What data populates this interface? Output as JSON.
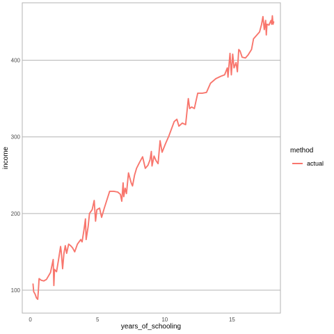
{
  "chart_data": {
    "type": "line",
    "xlabel": "years_of_schooling",
    "ylabel": "income",
    "xlim": [
      -0.6,
      18.6
    ],
    "ylim": [
      70,
      475
    ],
    "x_ticks": [
      0,
      5,
      10,
      15
    ],
    "x_tick_labels": [
      "0",
      "5",
      "10",
      "15"
    ],
    "y_ticks": [
      100,
      200,
      300,
      400
    ],
    "y_tick_labels": [
      "100",
      "200",
      "300",
      "400"
    ],
    "grid": true,
    "legend": {
      "title": "method",
      "placement": "right"
    },
    "series": [
      {
        "name": "actual",
        "color": "#f8766d",
        "points": [
          [
            0.2,
            108
          ],
          [
            0.25,
            98
          ],
          [
            0.35,
            95
          ],
          [
            0.45,
            90
          ],
          [
            0.55,
            88
          ],
          [
            0.6,
            100
          ],
          [
            0.65,
            115
          ],
          [
            0.8,
            113
          ],
          [
            1.0,
            112
          ],
          [
            1.2,
            114
          ],
          [
            1.5,
            123
          ],
          [
            1.7,
            140
          ],
          [
            1.75,
            106
          ],
          [
            1.8,
            127
          ],
          [
            1.95,
            124
          ],
          [
            2.1,
            140
          ],
          [
            2.25,
            157
          ],
          [
            2.3,
            150
          ],
          [
            2.4,
            128
          ],
          [
            2.5,
            148
          ],
          [
            2.6,
            158
          ],
          [
            2.7,
            148
          ],
          [
            2.85,
            160
          ],
          [
            3.0,
            158
          ],
          [
            3.15,
            155
          ],
          [
            3.3,
            150
          ],
          [
            3.5,
            160
          ],
          [
            3.75,
            166
          ],
          [
            3.85,
            163
          ],
          [
            4.0,
            180
          ],
          [
            4.1,
            193
          ],
          [
            4.15,
            166
          ],
          [
            4.3,
            183
          ],
          [
            4.4,
            200
          ],
          [
            4.6,
            205
          ],
          [
            4.75,
            217
          ],
          [
            4.85,
            190
          ],
          [
            4.95,
            205
          ],
          [
            5.15,
            207
          ],
          [
            5.3,
            195
          ],
          [
            5.5,
            207
          ],
          [
            5.7,
            218
          ],
          [
            5.9,
            229
          ],
          [
            6.2,
            229
          ],
          [
            6.5,
            228
          ],
          [
            6.7,
            225
          ],
          [
            6.8,
            216
          ],
          [
            6.9,
            240
          ],
          [
            6.95,
            222
          ],
          [
            7.05,
            233
          ],
          [
            7.15,
            226
          ],
          [
            7.3,
            253
          ],
          [
            7.5,
            240
          ],
          [
            7.6,
            236
          ],
          [
            7.75,
            250
          ],
          [
            7.9,
            259
          ],
          [
            8.1,
            266
          ],
          [
            8.35,
            274
          ],
          [
            8.55,
            259
          ],
          [
            8.75,
            263
          ],
          [
            8.9,
            270
          ],
          [
            9.0,
            281
          ],
          [
            9.05,
            262
          ],
          [
            9.2,
            275
          ],
          [
            9.35,
            269
          ],
          [
            9.5,
            265
          ],
          [
            9.65,
            295
          ],
          [
            9.8,
            280
          ],
          [
            10.05,
            291
          ],
          [
            10.3,
            301
          ],
          [
            10.7,
            320
          ],
          [
            10.9,
            323
          ],
          [
            11.05,
            314
          ],
          [
            11.3,
            318
          ],
          [
            11.55,
            316
          ],
          [
            11.75,
            350
          ],
          [
            11.85,
            337
          ],
          [
            12.0,
            339
          ],
          [
            12.2,
            337
          ],
          [
            12.45,
            357
          ],
          [
            12.8,
            357
          ],
          [
            13.1,
            358
          ],
          [
            13.4,
            370
          ],
          [
            13.8,
            376
          ],
          [
            14.15,
            379
          ],
          [
            14.45,
            381
          ],
          [
            14.65,
            390
          ],
          [
            14.7,
            378
          ],
          [
            14.85,
            409
          ],
          [
            14.95,
            381
          ],
          [
            15.05,
            408
          ],
          [
            15.15,
            390
          ],
          [
            15.3,
            397
          ],
          [
            15.4,
            385
          ],
          [
            15.5,
            414
          ],
          [
            15.6,
            412
          ],
          [
            15.75,
            404
          ],
          [
            16.0,
            403
          ],
          [
            16.2,
            407
          ],
          [
            16.45,
            414
          ],
          [
            16.6,
            428
          ],
          [
            16.8,
            432
          ],
          [
            17.05,
            437
          ],
          [
            17.2,
            447
          ],
          [
            17.3,
            457
          ],
          [
            17.4,
            440
          ],
          [
            17.5,
            452
          ],
          [
            17.55,
            433
          ],
          [
            17.6,
            447
          ],
          [
            17.75,
            446
          ],
          [
            17.9,
            452
          ],
          [
            17.95,
            447
          ],
          [
            18.0,
            458
          ],
          [
            18.05,
            447
          ],
          [
            18.1,
            450
          ]
        ]
      }
    ]
  }
}
